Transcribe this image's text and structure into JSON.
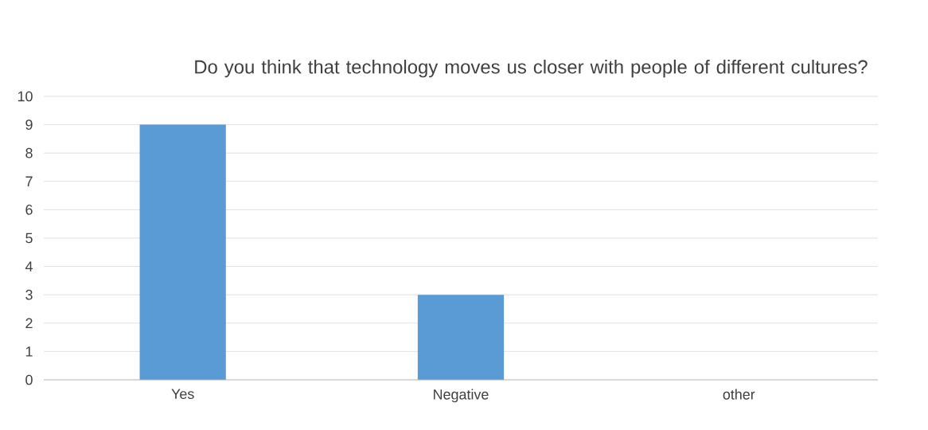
{
  "chart_data": {
    "type": "bar",
    "title": "Do you think that technology moves us closer with people of different cultures?",
    "categories": [
      "Yes",
      "Negative",
      "other"
    ],
    "values": [
      9,
      3,
      0
    ],
    "color": "#5b9bd5",
    "ylim": [
      0,
      10
    ],
    "yticks": [
      0,
      1,
      2,
      3,
      4,
      5,
      6,
      7,
      8,
      9,
      10
    ],
    "grid": "y"
  }
}
